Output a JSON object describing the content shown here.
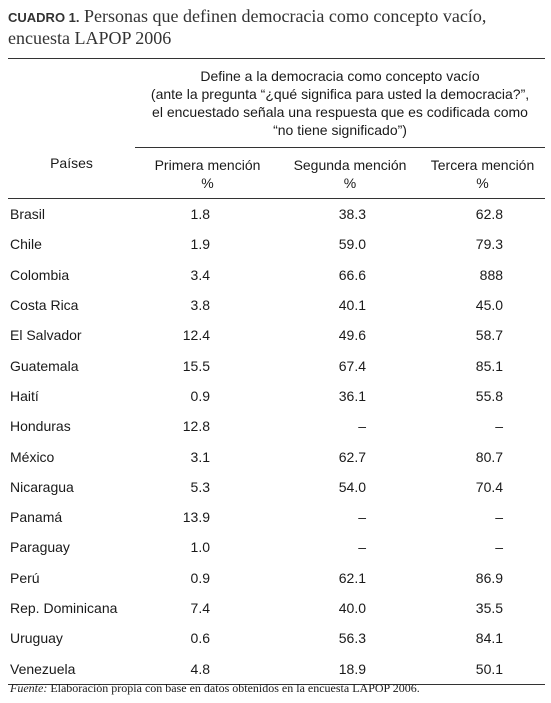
{
  "title": {
    "label": "CUADRO 1.",
    "text": "Personas que definen democracia como concepto vacío, encuesta LAPOP 2006"
  },
  "table": {
    "group_header": [
      "Define a la democracia como concepto vacío",
      "(ante la pregunta “¿qué significa para usted la democracia?”,",
      "el encuestado señala una respuesta que es codificada como",
      "“no tiene significado”)"
    ],
    "row_header": "Países",
    "columns": [
      {
        "name": "Primera mención",
        "unit": "%"
      },
      {
        "name": "Segunda mención",
        "unit": "%"
      },
      {
        "name": "Tercera mención",
        "unit": "%"
      }
    ],
    "rows": [
      [
        "Brasil",
        "1.8",
        "38.3",
        "62.8"
      ],
      [
        "Chile",
        "1.9",
        "59.0",
        "79.3"
      ],
      [
        "Colombia",
        "3.4",
        "66.6",
        "888"
      ],
      [
        "Costa Rica",
        "3.8",
        "40.1",
        "45.0"
      ],
      [
        "El Salvador",
        "12.4",
        "49.6",
        "58.7"
      ],
      [
        "Guatemala",
        "15.5",
        "67.4",
        "85.1"
      ],
      [
        "Haití",
        "0.9",
        "36.1",
        "55.8"
      ],
      [
        "Honduras",
        "12.8",
        "–",
        "–"
      ],
      [
        "México",
        "3.1",
        "62.7",
        "80.7"
      ],
      [
        "Nicaragua",
        "5.3",
        "54.0",
        "70.4"
      ],
      [
        "Panamá",
        "13.9",
        "–",
        "–"
      ],
      [
        "Paraguay",
        "1.0",
        "–",
        "–"
      ],
      [
        "Perú",
        "0.9",
        "62.1",
        "86.9"
      ],
      [
        "Rep. Dominicana",
        "7.4",
        "40.0",
        "35.5"
      ],
      [
        "Uruguay",
        "0.6",
        "56.3",
        "84.1"
      ],
      [
        "Venezuela",
        "4.8",
        "18.9",
        "50.1"
      ]
    ]
  },
  "footnote": {
    "label": "Fuente:",
    "text": "Elaboración propia con base en datos obtenidos en la encuesta LAPOP 2006."
  }
}
